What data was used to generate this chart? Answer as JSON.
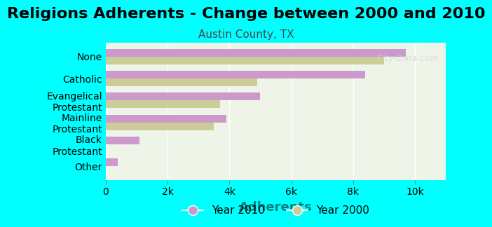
{
  "title": "Religions Adherents - Change between 2000 and 2010",
  "subtitle": "Austin County, TX",
  "xlabel": "Adherents",
  "background_color": "#00FFFF",
  "plot_bg_color": "#eef5e8",
  "categories": [
    "Other",
    "Black\nProtestant",
    "Mainline\nProtestant",
    "Evangelical\nProtestant",
    "Catholic",
    "None"
  ],
  "year2010": [
    400,
    1100,
    3900,
    5000,
    8400,
    9700
  ],
  "year2000": [
    0,
    0,
    3500,
    3700,
    4900,
    9000
  ],
  "color_2010": "#cc99cc",
  "color_2000": "#cccc99",
  "bar_height": 0.35,
  "xlim": [
    0,
    11000
  ],
  "xticks": [
    0,
    2000,
    4000,
    6000,
    8000,
    10000
  ],
  "xticklabels": [
    "0",
    "2k",
    "4k",
    "6k",
    "8k",
    "10k"
  ],
  "title_fontsize": 16,
  "subtitle_fontsize": 11,
  "xlabel_fontsize": 13,
  "legend_fontsize": 11,
  "watermark": "City-Data.com"
}
